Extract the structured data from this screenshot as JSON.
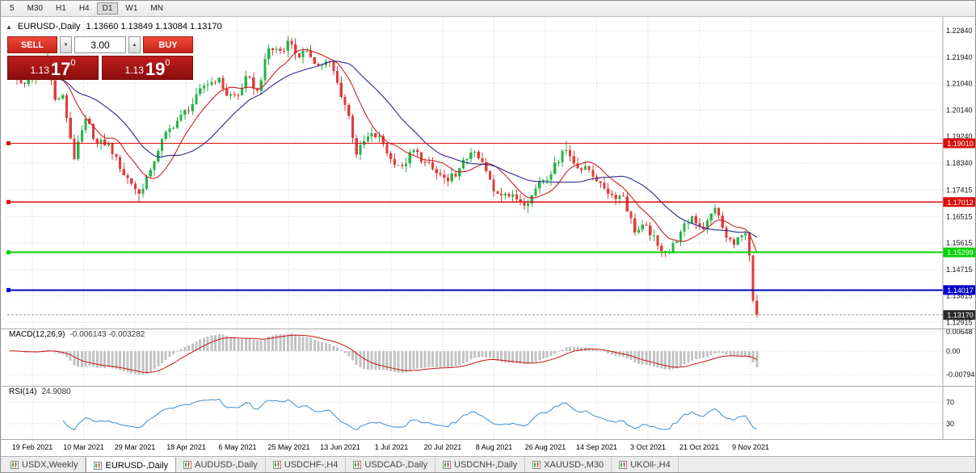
{
  "toolbar": {
    "periods": [
      "5",
      "M30",
      "H1",
      "H4",
      "D1",
      "W1",
      "MN"
    ],
    "active_period": "D1"
  },
  "chart_header": {
    "toggle_icon": "▲",
    "title": "EURUSD-,Daily",
    "ohlc": "1.13660 1.13849 1.13084 1.13170"
  },
  "one_click": {
    "sell_label": "SELL",
    "buy_label": "BUY",
    "volume": "3.00",
    "volume_down_icon": "▼",
    "volume_up_icon": "▲",
    "sell_price_small": "1.13",
    "sell_price_big": "17",
    "sell_price_sup": "0",
    "buy_price_small": "1.13",
    "buy_price_big": "19",
    "buy_price_sup": "0"
  },
  "price_axis": {
    "labels": [
      "1.22840",
      "1.21940",
      "1.21040",
      "1.20140",
      "1.19240",
      "1.18340",
      "1.17415",
      "1.16515",
      "1.15615",
      "1.14715",
      "1.13815",
      "1.12915"
    ]
  },
  "hlines": [
    {
      "value": 1.1901,
      "label": "1.19010",
      "color": "#dd0b0b",
      "width": 1.2
    },
    {
      "value": 1.17012,
      "label": "1.17012",
      "color": "#dd0b0b",
      "width": 1.2
    },
    {
      "value": 1.15299,
      "label": "1.15299",
      "color": "#00d400",
      "width": 2
    },
    {
      "value": 1.14017,
      "label": "1.14017",
      "color": "#0000c8",
      "width": 1.8
    },
    {
      "value": 1.1317,
      "label": "1.13170",
      "color": "#2b2b2b",
      "width": 1,
      "is_price": true
    }
  ],
  "macd": {
    "label": "MACD(12,26,9)",
    "values": "-0.006143 -0.003282",
    "axis_labels": [
      "0.00648",
      "0.00",
      "-0.00794"
    ]
  },
  "rsi": {
    "label": "RSI(14)",
    "value": "24.9080",
    "axis_labels": [
      "70",
      "30"
    ],
    "levels": [
      70,
      30
    ],
    "period": 14
  },
  "date_axis": [
    "19 Feb 2021",
    "10 Mar 2021",
    "29 Mar 2021",
    "18 Apr 2021",
    "6 May 2021",
    "25 May 2021",
    "13 Jun 2021",
    "1 Jul 2021",
    "20 Jul 2021",
    "8 Aug 2021",
    "26 Aug 2021",
    "14 Sep 2021",
    "3 Oct 2021",
    "21 Oct 2021",
    "9 Nov 2021"
  ],
  "tabs": [
    {
      "label": "USDX,Weekly",
      "active": false
    },
    {
      "label": "EURUSD-,Daily",
      "active": true
    },
    {
      "label": "AUDUSD-,Daily",
      "active": false
    },
    {
      "label": "USDCHF-,H4",
      "active": false
    },
    {
      "label": "USDCAD-,Daily",
      "active": false
    },
    {
      "label": "USDCNH-,Daily",
      "active": false
    },
    {
      "label": "XAUUSD-,M30",
      "active": false
    },
    {
      "label": "UKOil-,H4",
      "active": false
    }
  ],
  "chart_data": {
    "type": "candlestick",
    "symbol": "EURUSD-",
    "timeframe": "Daily",
    "title": "EURUSD-,Daily",
    "y_range": [
      1.12915,
      1.2284
    ],
    "num_candles": 197,
    "last_candle": {
      "open": 1.1366,
      "high": 1.13849,
      "low": 1.13084,
      "close": 1.1317
    },
    "anchors": [
      [
        0,
        1.2135
      ],
      [
        3,
        1.2105
      ],
      [
        6,
        1.2118
      ],
      [
        9,
        1.2168
      ],
      [
        10,
        1.2175,
        1.2243,
        null
      ],
      [
        12,
        1.2049
      ],
      [
        14,
        1.2064
      ],
      [
        17,
        1.1848
      ],
      [
        20,
        1.1985
      ],
      [
        23,
        1.19
      ],
      [
        26,
        1.1903
      ],
      [
        29,
        1.1813
      ],
      [
        32,
        1.1764
      ],
      [
        34,
        1.173,
        null,
        1.1704
      ],
      [
        37,
        1.1811
      ],
      [
        40,
        1.1916
      ],
      [
        44,
        1.1978
      ],
      [
        48,
        1.2034
      ],
      [
        51,
        1.2097
      ],
      [
        55,
        1.2124
      ],
      [
        57,
        1.2063
      ],
      [
        60,
        1.2064
      ],
      [
        62,
        1.2129
      ],
      [
        65,
        1.2079
      ],
      [
        68,
        1.2223
      ],
      [
        72,
        1.2215
      ],
      [
        73,
        1.225,
        1.2266,
        null
      ],
      [
        76,
        1.2193
      ],
      [
        78,
        1.2216
      ],
      [
        81,
        1.2166
      ],
      [
        84,
        1.2179
      ],
      [
        86,
        1.2107
      ],
      [
        89,
        1.1995
      ],
      [
        91,
        1.1863
      ],
      [
        94,
        1.1925
      ],
      [
        97,
        1.1926
      ],
      [
        100,
        1.1847
      ],
      [
        103,
        1.1823
      ],
      [
        106,
        1.1877
      ],
      [
        109,
        1.1836
      ],
      [
        112,
        1.1799
      ],
      [
        115,
        1.1772
      ],
      [
        118,
        1.1816
      ],
      [
        121,
        1.187
      ],
      [
        124,
        1.1836
      ],
      [
        127,
        1.1738
      ],
      [
        130,
        1.1729
      ],
      [
        133,
        1.171
      ],
      [
        136,
        1.1697,
        null,
        1.1664
      ],
      [
        139,
        1.1772
      ],
      [
        142,
        1.1797
      ],
      [
        145,
        1.1875
      ],
      [
        146,
        1.1878,
        1.1909,
        null
      ],
      [
        149,
        1.1816
      ],
      [
        152,
        1.181
      ],
      [
        155,
        1.1766
      ],
      [
        158,
        1.1725
      ],
      [
        161,
        1.172
      ],
      [
        164,
        1.1598
      ],
      [
        167,
        1.1621
      ],
      [
        170,
        1.1552
      ],
      [
        173,
        1.153,
        null,
        1.1524
      ],
      [
        176,
        1.16
      ],
      [
        179,
        1.1652
      ],
      [
        182,
        1.1608
      ],
      [
        185,
        1.1682
      ],
      [
        188,
        1.158
      ],
      [
        190,
        1.1555
      ],
      [
        192,
        1.1588
      ],
      [
        193,
        1.1593
      ],
      [
        194,
        1.152
      ],
      [
        195,
        1.1366
      ],
      [
        196,
        1.1317,
        1.13849,
        1.13084
      ]
    ],
    "moving_averages": [
      {
        "type": "sma",
        "period": 10,
        "color": "#cf1f1f"
      },
      {
        "type": "sma",
        "period": 24,
        "color": "#28288c"
      }
    ],
    "indicators": {
      "macd": {
        "fast": 12,
        "slow": 26,
        "signal": 9,
        "main_value": -0.006143,
        "signal_value": -0.003282
      },
      "rsi": {
        "period": 14,
        "value": 24.908
      }
    },
    "colors": {
      "up": "#29b24a",
      "down": "#e03c3c",
      "histogram": "#c2c2c2",
      "macd_signal": "#cc1111",
      "rsi_line": "#3c8cd0",
      "grid": "#d6d6d6",
      "separator": "#a8a8a8"
    }
  }
}
